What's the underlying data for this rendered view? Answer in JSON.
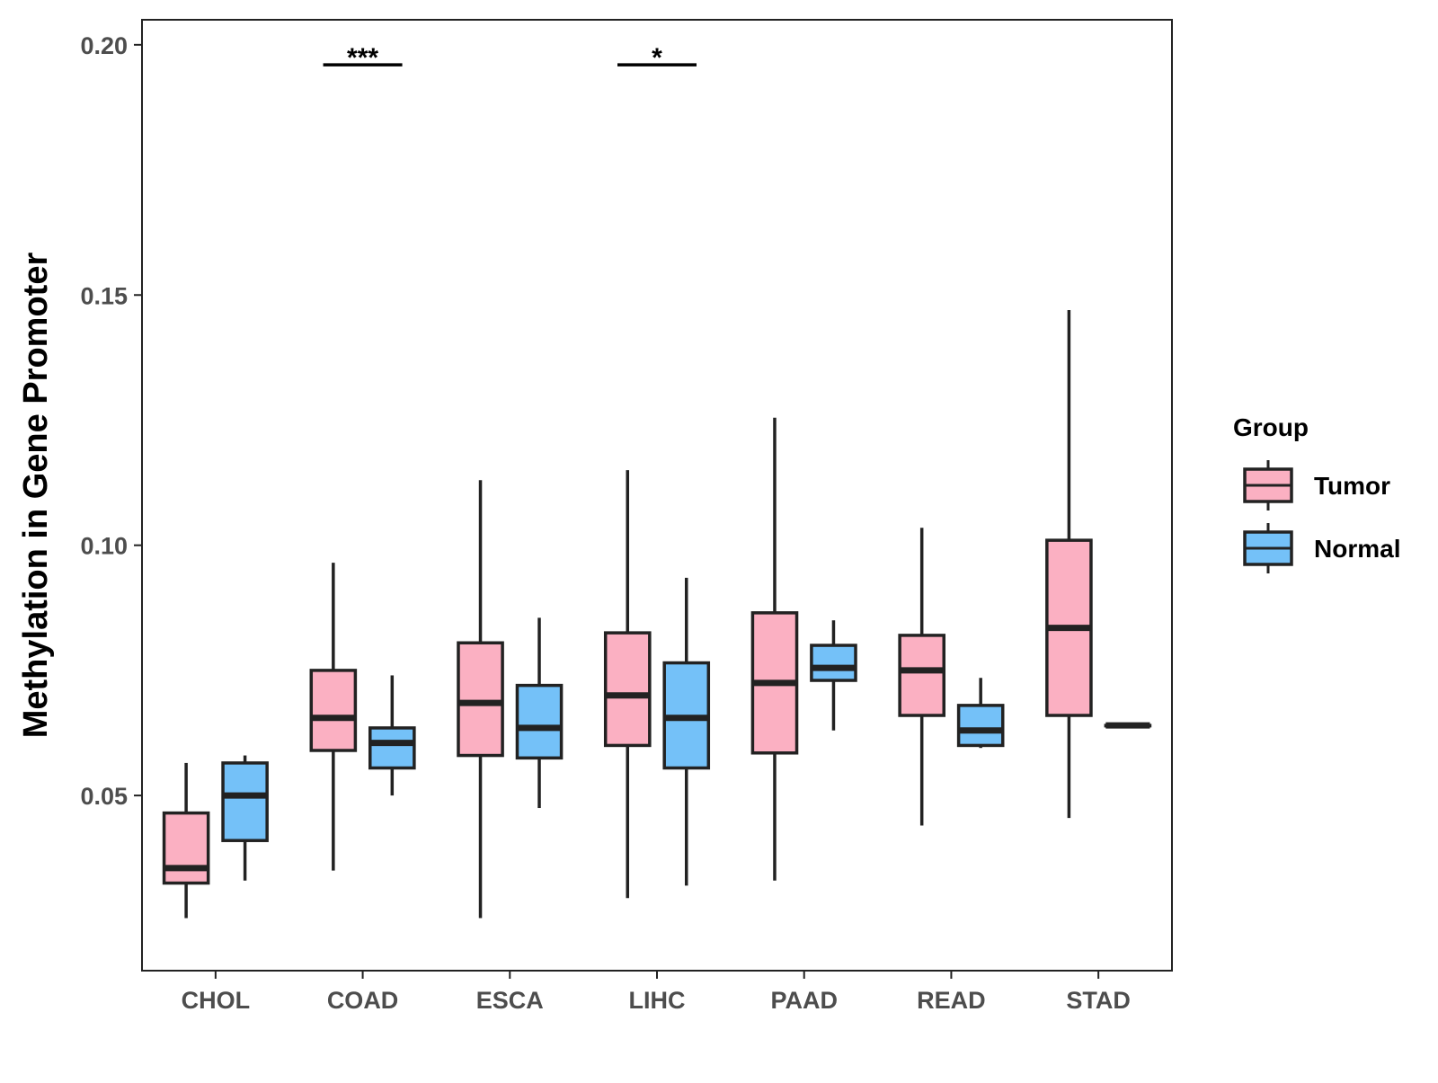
{
  "chart_data": {
    "type": "boxplot",
    "title": "",
    "xlabel": "",
    "ylabel": "Methylation in Gene Promoter",
    "ylim": [
      0.015,
      0.205
    ],
    "yticks": [
      0.05,
      0.1,
      0.15,
      0.2
    ],
    "ytick_labels": [
      "0.05",
      "0.10",
      "0.15",
      "0.20"
    ],
    "categories": [
      "CHOL",
      "COAD",
      "ESCA",
      "LIHC",
      "PAAD",
      "READ",
      "STAD"
    ],
    "legend": {
      "title": "Group",
      "position": "right",
      "entries": [
        {
          "name": "Tumor",
          "color": "#FBB0C2"
        },
        {
          "name": "Normal",
          "color": "#74C1F8"
        }
      ]
    },
    "series": [
      {
        "name": "Tumor",
        "color": "#FBB0C2",
        "boxes": [
          {
            "category": "CHOL",
            "min": 0.0255,
            "q1": 0.0325,
            "median": 0.0355,
            "q3": 0.0465,
            "max": 0.0565
          },
          {
            "category": "COAD",
            "min": 0.035,
            "q1": 0.059,
            "median": 0.0655,
            "q3": 0.075,
            "max": 0.0965
          },
          {
            "category": "ESCA",
            "min": 0.0255,
            "q1": 0.058,
            "median": 0.0685,
            "q3": 0.0805,
            "max": 0.113
          },
          {
            "category": "LIHC",
            "min": 0.0295,
            "q1": 0.06,
            "median": 0.07,
            "q3": 0.0825,
            "max": 0.115
          },
          {
            "category": "PAAD",
            "min": 0.033,
            "q1": 0.0585,
            "median": 0.0725,
            "q3": 0.0865,
            "max": 0.1255
          },
          {
            "category": "READ",
            "min": 0.044,
            "q1": 0.066,
            "median": 0.075,
            "q3": 0.082,
            "max": 0.1035
          },
          {
            "category": "STAD",
            "min": 0.0455,
            "q1": 0.066,
            "median": 0.0835,
            "q3": 0.101,
            "max": 0.147
          }
        ]
      },
      {
        "name": "Normal",
        "color": "#74C1F8",
        "boxes": [
          {
            "category": "CHOL",
            "min": 0.033,
            "q1": 0.041,
            "median": 0.05,
            "q3": 0.0565,
            "max": 0.058
          },
          {
            "category": "COAD",
            "min": 0.05,
            "q1": 0.0555,
            "median": 0.0605,
            "q3": 0.0635,
            "max": 0.074
          },
          {
            "category": "ESCA",
            "min": 0.0475,
            "q1": 0.0575,
            "median": 0.0635,
            "q3": 0.072,
            "max": 0.0855
          },
          {
            "category": "LIHC",
            "min": 0.032,
            "q1": 0.0555,
            "median": 0.0655,
            "q3": 0.0765,
            "max": 0.0935
          },
          {
            "category": "PAAD",
            "min": 0.063,
            "q1": 0.073,
            "median": 0.0755,
            "q3": 0.08,
            "max": 0.085
          },
          {
            "category": "READ",
            "min": 0.0595,
            "q1": 0.06,
            "median": 0.063,
            "q3": 0.068,
            "max": 0.0735
          },
          {
            "category": "STAD",
            "min": 0.064,
            "q1": 0.064,
            "median": 0.064,
            "q3": 0.064,
            "max": 0.064
          }
        ]
      }
    ],
    "annotations": [
      {
        "category": "COAD",
        "label": "***",
        "y": 0.196
      },
      {
        "category": "LIHC",
        "label": "*",
        "y": 0.196
      }
    ]
  }
}
